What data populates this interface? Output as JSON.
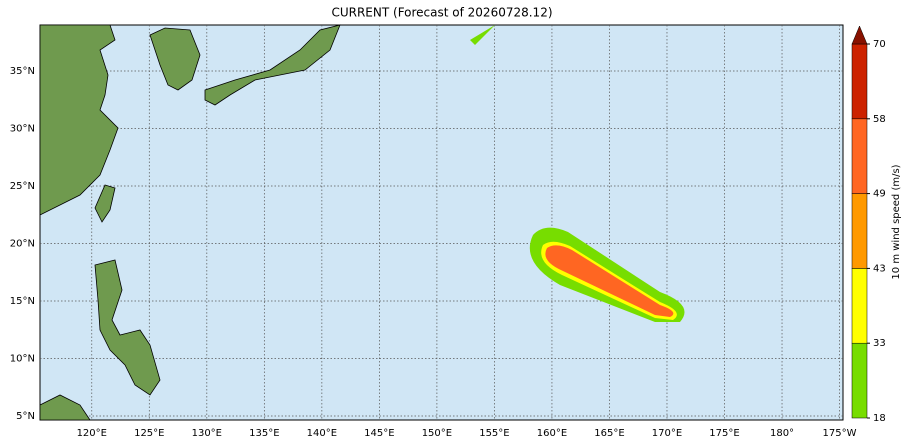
{
  "title": "CURRENT (Forecast of 20260728.12)",
  "map": {
    "lon_range": [
      115.5,
      185.3
    ],
    "lat_range": [
      4.65,
      39
    ],
    "lon_ticks": [
      {
        "value": 120,
        "label": "120°E"
      },
      {
        "value": 125,
        "label": "125°E"
      },
      {
        "value": 130,
        "label": "130°E"
      },
      {
        "value": 135,
        "label": "135°E"
      },
      {
        "value": 140,
        "label": "140°E"
      },
      {
        "value": 145,
        "label": "145°E"
      },
      {
        "value": 150,
        "label": "150°E"
      },
      {
        "value": 155,
        "label": "155°E"
      },
      {
        "value": 160,
        "label": "160°E"
      },
      {
        "value": 165,
        "label": "165°E"
      },
      {
        "value": 170,
        "label": "170°E"
      },
      {
        "value": 175,
        "label": "175°E"
      },
      {
        "value": 180,
        "label": "180°"
      },
      {
        "value": 185,
        "label": "175°W"
      }
    ],
    "lat_ticks": [
      {
        "value": 5,
        "label": "5°N"
      },
      {
        "value": 10,
        "label": "10°N"
      },
      {
        "value": 15,
        "label": "15°N"
      },
      {
        "value": 20,
        "label": "20°N"
      },
      {
        "value": 25,
        "label": "25°N"
      },
      {
        "value": 30,
        "label": "30°N"
      },
      {
        "value": 35,
        "label": "35°N"
      }
    ]
  },
  "colorbar": {
    "label": "10 m wind speed (m/s)",
    "levels": [
      18,
      33,
      43,
      49,
      58,
      70
    ],
    "colors": [
      "#77dd00",
      "#ffff00",
      "#ff9900",
      "#ff6622",
      "#cc2200"
    ],
    "extend_color": "#881100"
  }
}
